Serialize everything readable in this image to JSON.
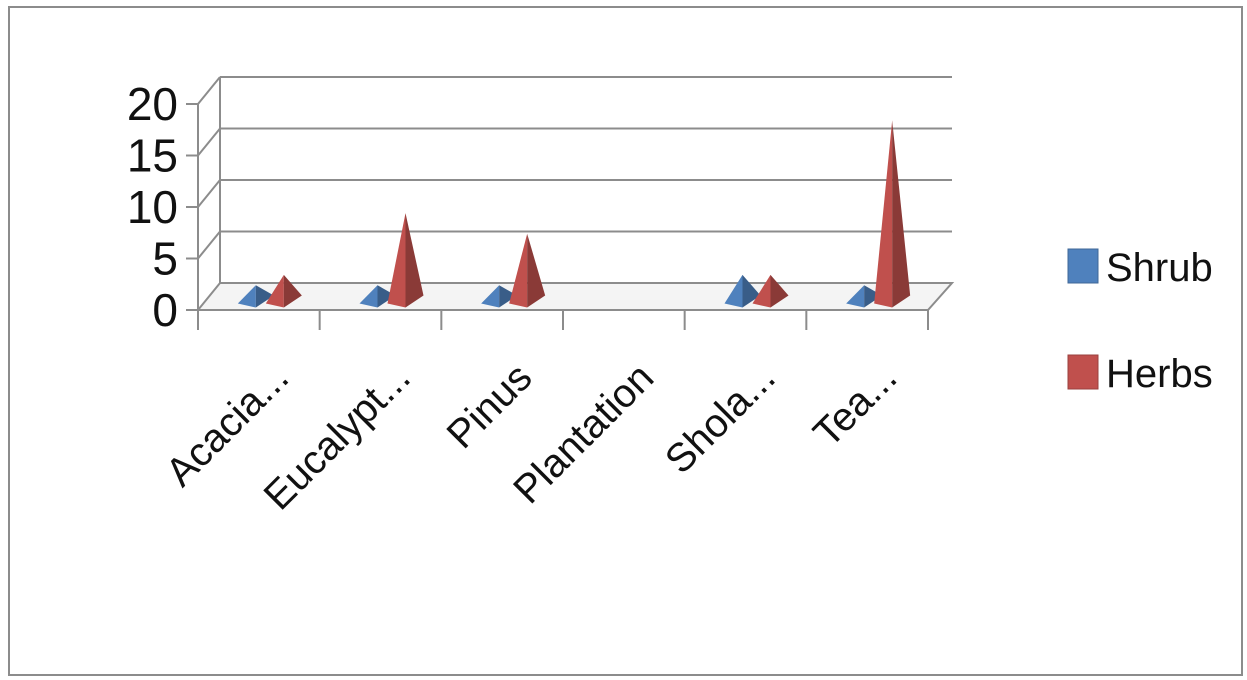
{
  "chart_data": {
    "type": "bar",
    "style": "3d-pyramid",
    "categories": [
      "Acacia...",
      "Eucalypt...",
      "Pinus",
      "Plantation",
      "Shola...",
      "Tea..."
    ],
    "series": [
      {
        "name": "Shrub",
        "values": [
          1,
          1,
          1,
          0,
          2,
          1
        ],
        "color": "#4f81bd"
      },
      {
        "name": "Herbs",
        "values": [
          2,
          8,
          6,
          0,
          2,
          17
        ],
        "color": "#c0504d"
      }
    ],
    "yticks": [
      "0",
      "5",
      "10",
      "15",
      "20"
    ],
    "ylim": [
      0,
      20
    ],
    "grid": true,
    "legend_position": "right"
  }
}
